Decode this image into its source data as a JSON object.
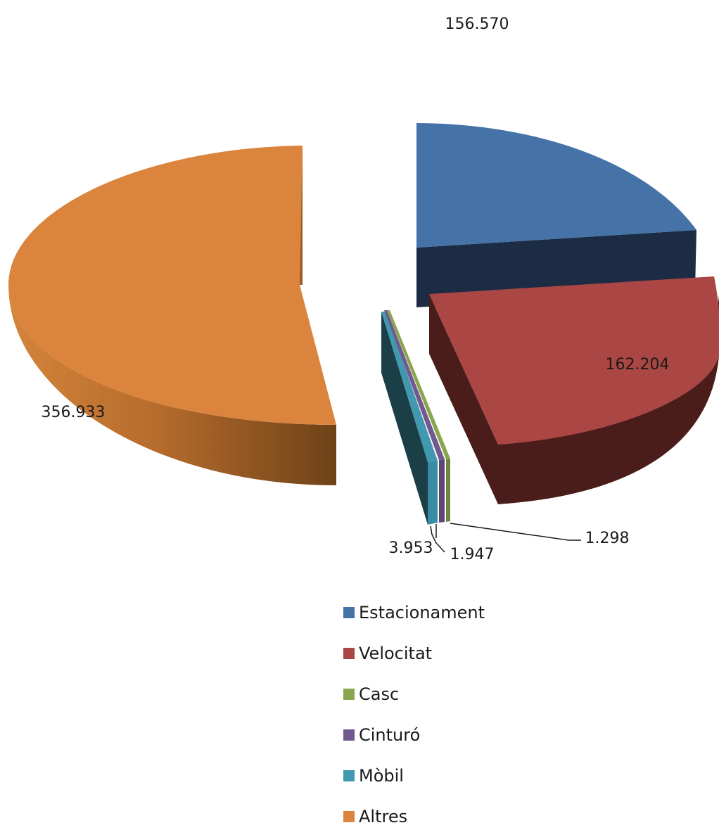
{
  "chart_data": {
    "type": "pie",
    "style": "3d-exploded",
    "title": "",
    "categories": [
      "Estacionament",
      "Velocitat",
      "Casc",
      "Cinturó",
      "Mòbil",
      "Altres"
    ],
    "values": [
      156570,
      162204,
      1298,
      1947,
      3953,
      356933
    ],
    "value_labels": [
      "156.570",
      "162.204",
      "1.298",
      "1.947",
      "3.953",
      "356.933"
    ],
    "colors": [
      "#4572A7",
      "#AA4643",
      "#89A54E",
      "#71588F",
      "#4198AF",
      "#DB843D"
    ],
    "legend_position": "bottom-right"
  }
}
